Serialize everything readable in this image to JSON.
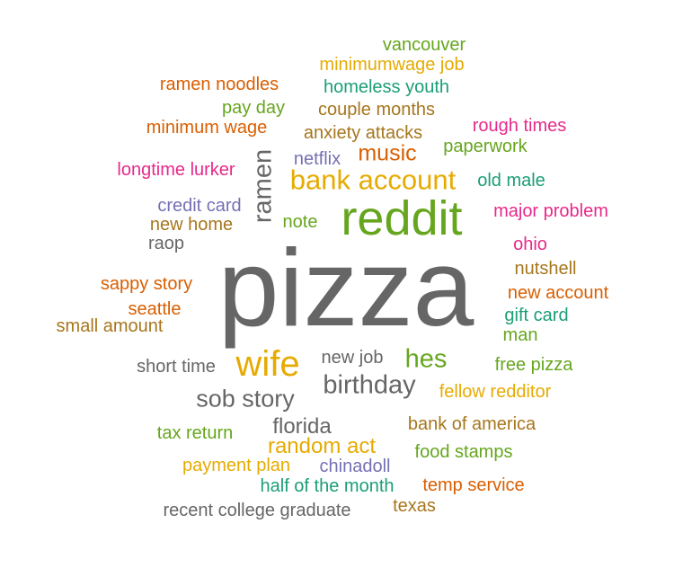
{
  "chart_data": {
    "type": "wordcloud",
    "colors": {
      "gray": "#666666",
      "green": "#66a61e",
      "gold": "#e6ab02",
      "orange": "#d95f02",
      "teal": "#1b9e77",
      "pink": "#e7298a",
      "purple": "#7570b3",
      "brown": "#a6761d"
    },
    "words": [
      {
        "text": "pizza",
        "weight": 100,
        "color": "gray"
      },
      {
        "text": "reddit",
        "weight": 42,
        "color": "green"
      },
      {
        "text": "wife",
        "weight": 32,
        "color": "gold"
      },
      {
        "text": "bank account",
        "weight": 26,
        "color": "gold"
      },
      {
        "text": "ramen",
        "weight": 24,
        "color": "gray",
        "rotated": true
      },
      {
        "text": "hes",
        "weight": 24,
        "color": "green"
      },
      {
        "text": "birthday",
        "weight": 24,
        "color": "gray"
      },
      {
        "text": "sob story",
        "weight": 22,
        "color": "gray"
      },
      {
        "text": "music",
        "weight": 20,
        "color": "orange"
      },
      {
        "text": "random act",
        "weight": 19,
        "color": "gold"
      },
      {
        "text": "florida",
        "weight": 19,
        "color": "gray"
      },
      {
        "text": "vancouver",
        "weight": 16,
        "color": "green"
      },
      {
        "text": "minimumwage job",
        "weight": 16,
        "color": "gold"
      },
      {
        "text": "ramen noodles",
        "weight": 16,
        "color": "orange"
      },
      {
        "text": "homeless youth",
        "weight": 16,
        "color": "teal"
      },
      {
        "text": "pay day",
        "weight": 16,
        "color": "green"
      },
      {
        "text": "couple months",
        "weight": 16,
        "color": "brown"
      },
      {
        "text": "minimum wage",
        "weight": 16,
        "color": "orange"
      },
      {
        "text": "rough times",
        "weight": 16,
        "color": "pink"
      },
      {
        "text": "anxiety attacks",
        "weight": 16,
        "color": "brown"
      },
      {
        "text": "paperwork",
        "weight": 16,
        "color": "green"
      },
      {
        "text": "netflix",
        "weight": 16,
        "color": "purple"
      },
      {
        "text": "longtime lurker",
        "weight": 16,
        "color": "pink"
      },
      {
        "text": "old male",
        "weight": 16,
        "color": "teal"
      },
      {
        "text": "credit card",
        "weight": 16,
        "color": "purple"
      },
      {
        "text": "note",
        "weight": 16,
        "color": "green"
      },
      {
        "text": "major problem",
        "weight": 16,
        "color": "pink"
      },
      {
        "text": "new home",
        "weight": 16,
        "color": "brown"
      },
      {
        "text": "raop",
        "weight": 16,
        "color": "gray"
      },
      {
        "text": "ohio",
        "weight": 16,
        "color": "pink"
      },
      {
        "text": "nutshell",
        "weight": 16,
        "color": "brown"
      },
      {
        "text": "sappy story",
        "weight": 16,
        "color": "orange"
      },
      {
        "text": "new account",
        "weight": 16,
        "color": "orange"
      },
      {
        "text": "seattle",
        "weight": 16,
        "color": "orange"
      },
      {
        "text": "gift card",
        "weight": 16,
        "color": "teal"
      },
      {
        "text": "small amount",
        "weight": 16,
        "color": "brown"
      },
      {
        "text": "man",
        "weight": 16,
        "color": "green"
      },
      {
        "text": "new job",
        "weight": 16,
        "color": "gray"
      },
      {
        "text": "short time",
        "weight": 16,
        "color": "gray"
      },
      {
        "text": "free pizza",
        "weight": 16,
        "color": "green"
      },
      {
        "text": "fellow redditor",
        "weight": 16,
        "color": "gold"
      },
      {
        "text": "bank of america",
        "weight": 16,
        "color": "brown"
      },
      {
        "text": "tax return",
        "weight": 16,
        "color": "green"
      },
      {
        "text": "food stamps",
        "weight": 16,
        "color": "green"
      },
      {
        "text": "payment plan",
        "weight": 16,
        "color": "gold"
      },
      {
        "text": "chinadoll",
        "weight": 16,
        "color": "purple"
      },
      {
        "text": "half of the month",
        "weight": 16,
        "color": "teal"
      },
      {
        "text": "temp service",
        "weight": 16,
        "color": "orange"
      },
      {
        "text": "recent college graduate",
        "weight": 16,
        "color": "gray"
      },
      {
        "text": "texas",
        "weight": 16,
        "color": "brown"
      }
    ]
  }
}
